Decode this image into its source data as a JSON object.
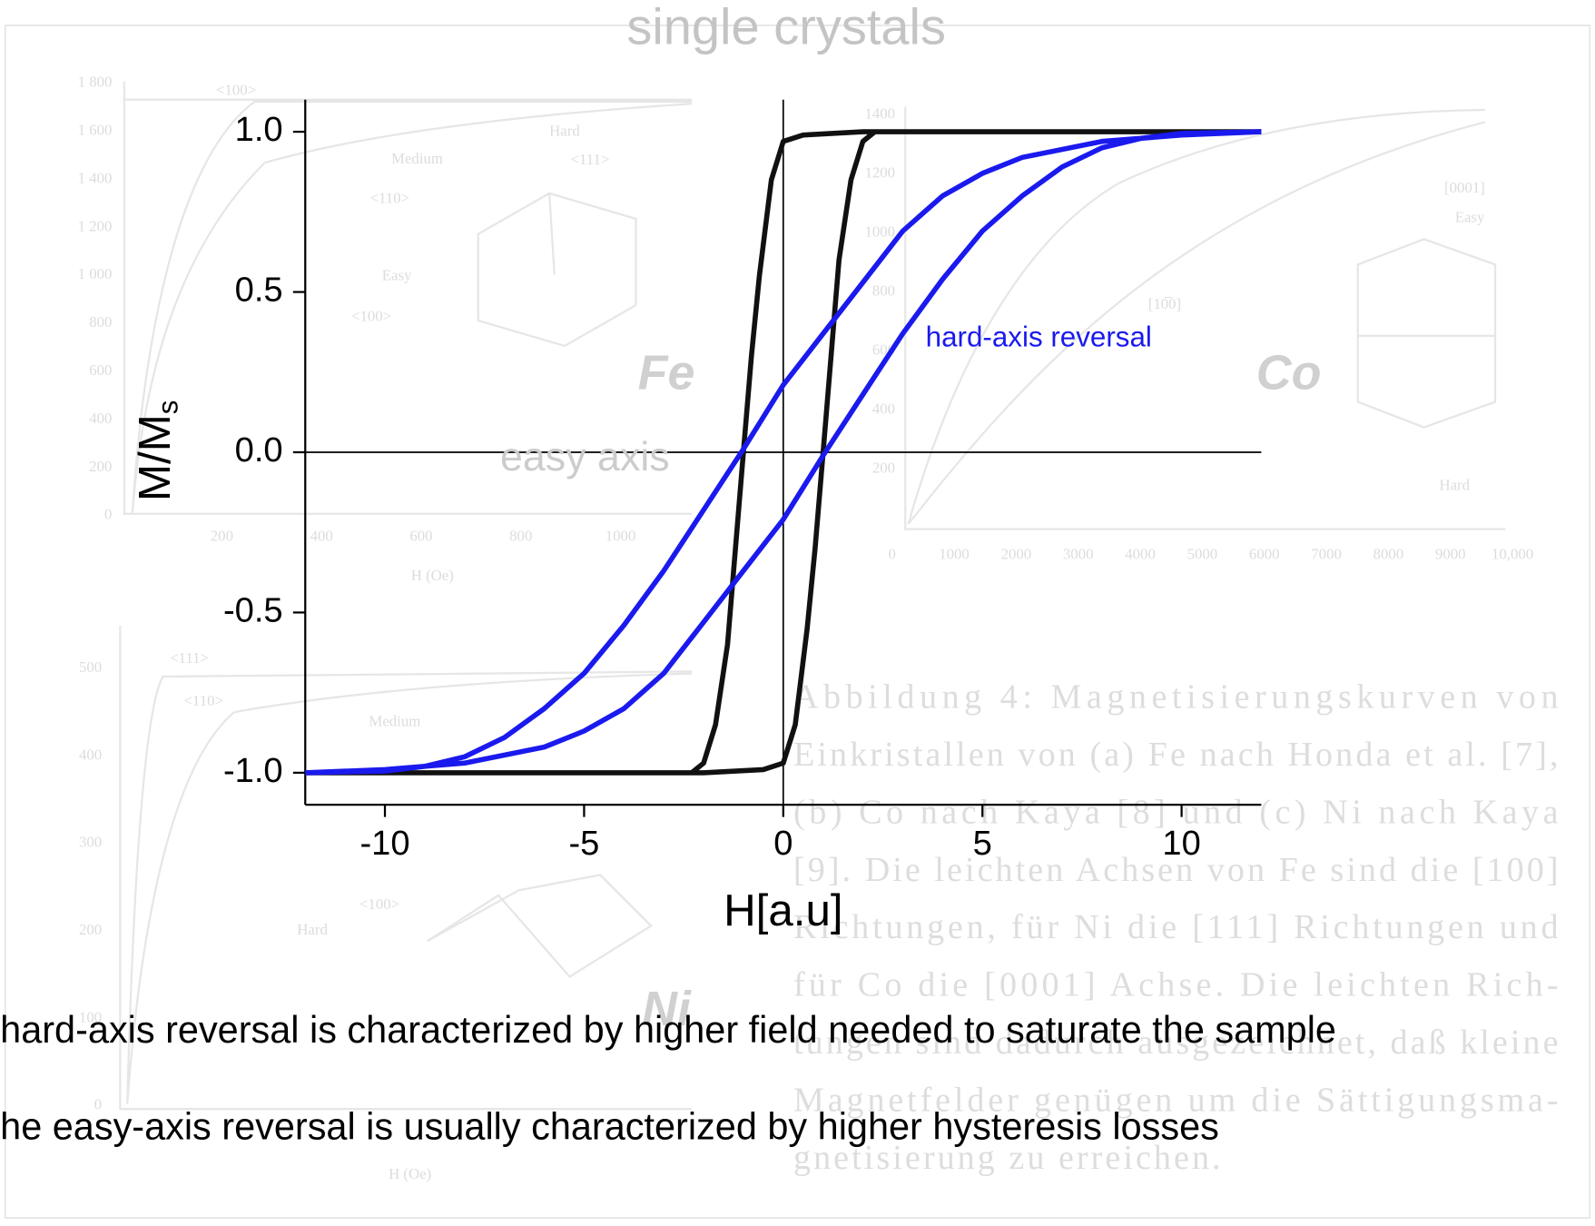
{
  "chart_data": {
    "type": "line",
    "title": "single crystals",
    "xlabel": "H[a.u]",
    "ylabel": {
      "text": "M/M",
      "subscript": "s"
    },
    "xlim": [
      -12,
      12
    ],
    "ylim": [
      -1.1,
      1.1
    ],
    "xticks": [
      -10,
      -5,
      0,
      5,
      10
    ],
    "yticks": [
      {
        "value": 1.0,
        "label": "1.0"
      },
      0.5,
      {
        "value": 0,
        "label": "0.0"
      },
      -0.5,
      {
        "value": -1.0,
        "label": "-1.0"
      }
    ],
    "zero_lines": true,
    "series": [
      {
        "name": "easy axis",
        "color": "#111111",
        "x": [
          -12,
          -2,
          -0.5,
          0,
          0.3,
          0.6,
          0.8,
          1.0,
          1.2,
          1.4,
          1.7,
          2.0,
          2.3,
          12,
          null,
          12,
          2,
          0.5,
          0,
          -0.3,
          -0.6,
          -0.8,
          -1.0,
          -1.2,
          -1.4,
          -1.7,
          -2.0,
          -2.3,
          -12
        ],
        "values": [
          -1,
          -1,
          -0.99,
          -0.97,
          -0.85,
          -0.55,
          -0.3,
          0,
          0.3,
          0.6,
          0.85,
          0.97,
          1,
          1,
          null,
          1,
          1,
          0.99,
          0.97,
          0.85,
          0.55,
          0.3,
          0,
          -0.3,
          -0.6,
          -0.85,
          -0.97,
          -1,
          -1
        ]
      },
      {
        "name": "hard-axis reversal",
        "color": "#1a1aee",
        "x": [
          -12,
          -10,
          -8,
          -6,
          -5,
          -4,
          -3,
          -2,
          -1,
          0,
          1,
          2,
          3,
          4,
          5,
          6,
          7,
          8,
          9,
          10,
          12,
          null,
          12,
          10,
          8,
          6,
          5,
          4,
          3,
          2,
          1,
          0,
          -1,
          -2,
          -3,
          -4,
          -5,
          -6,
          -7,
          -8,
          -9,
          -10,
          -12
        ],
        "values": [
          -1,
          -0.99,
          -0.97,
          -0.92,
          -0.87,
          -0.8,
          -0.69,
          -0.53,
          -0.37,
          -0.21,
          -0.01,
          0.18,
          0.37,
          0.54,
          0.69,
          0.8,
          0.89,
          0.95,
          0.98,
          0.995,
          1,
          null,
          1,
          0.99,
          0.97,
          0.92,
          0.87,
          0.8,
          0.69,
          0.53,
          0.37,
          0.21,
          0.01,
          -0.18,
          -0.37,
          -0.54,
          -0.69,
          -0.8,
          -0.89,
          -0.95,
          -0.98,
          -0.995,
          -1
        ]
      }
    ]
  },
  "elements": [
    "Fe",
    "Co",
    "Ni"
  ],
  "statements": [
    "hard-axis reversal is characterized by higher field needed to saturate the sample",
    "he easy-axis reversal is usually characterized by higher hysteresis losses"
  ],
  "background": {
    "caption": [
      "Abbildung 4: Magnetisierungskurven von",
      "Einkristallen von (a) Fe nach Honda et al. [7],",
      "(b) Co nach Kaya [8] und (c) Ni nach Kaya",
      "[9]. Die leichten Achsen von Fe sind die [100]",
      "Richtungen, für Ni die [111] Richtungen und",
      "für Co die [0001] Achse. Die leichten Rich-",
      "tungen sind dadurch ausgezeichnet, daß kleine",
      "Magnetfelder genügen um die Sättigungsma-",
      "gnetisierung zu erreichen."
    ],
    "fe_yticks": [
      "1 800",
      "1 600",
      "1 400",
      "1 200",
      "1 000",
      "800",
      "600",
      "400",
      "200",
      "0"
    ],
    "fe_xticks": [
      "200",
      "400",
      "600",
      "800",
      "1000"
    ],
    "co_yticks": [
      "1400",
      "1200",
      "1000",
      "800",
      "600",
      "400",
      "200"
    ],
    "co_xticks": [
      "0",
      "1000",
      "2000",
      "3000",
      "4000",
      "5000",
      "6000",
      "7000",
      "8000",
      "9000",
      "10,000"
    ],
    "ni_yticks": [
      "500",
      "400",
      "300",
      "200",
      "100",
      "0"
    ],
    "field_label": "H (Oe)",
    "fe_labels": [
      "<100>",
      "Medium",
      "Hard",
      "<111>",
      "<110>",
      "Easy",
      "<100>"
    ],
    "co_labels": [
      "[0001]",
      "Easy",
      "[10̅0]",
      "Hard"
    ],
    "ni_labels": [
      "<111>",
      "<110>",
      "Medium",
      "Hard",
      "<100>"
    ]
  }
}
